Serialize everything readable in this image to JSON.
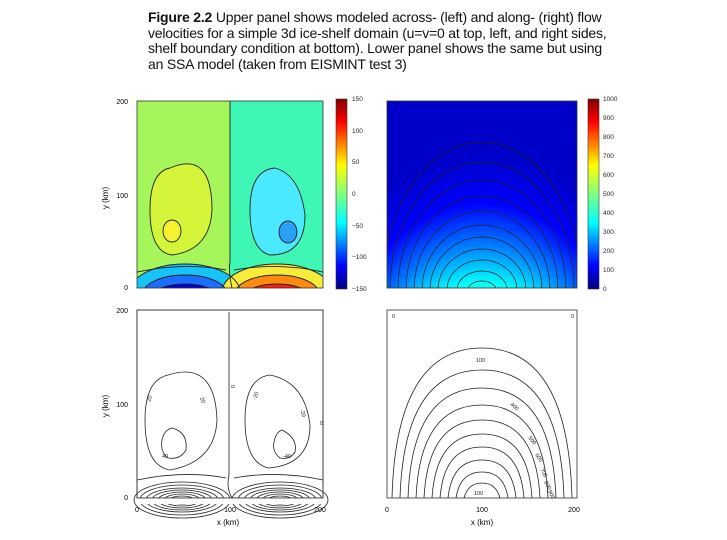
{
  "caption": {
    "label": "Figure 2.2",
    "text": "Upper panel shows modeled across- (left) and along- (right) flow velocities for a simple 3d ice-shelf domain (u=v=0 at top, left, and right sides, shelf boundary condition at bottom). Lower panel shows the same but using an SSA model (taken from EISMINT test 3)"
  },
  "panels": {
    "upper_left": {
      "ylabel": "y (km)",
      "yticks": [
        "200",
        "100",
        "0"
      ],
      "colorbar_ticks": [
        "150",
        "100",
        "50",
        "0",
        "−50",
        "−100",
        "−150"
      ]
    },
    "upper_right": {
      "colorbar_ticks": [
        "1000",
        "900",
        "800",
        "700",
        "600",
        "500",
        "400",
        "300",
        "200",
        "100",
        "0"
      ]
    },
    "lower_left": {
      "ylabel": "y (km)",
      "xlabel": "x (km)",
      "yticks": [
        "200",
        "100",
        "0"
      ],
      "xticks": [
        "0",
        "100",
        "200"
      ],
      "contour_labels": [
        "20",
        "20",
        "40",
        "-20",
        "-20",
        "-40",
        "0",
        "0"
      ]
    },
    "lower_right": {
      "xlabel": "x (km)",
      "xticks": [
        "0",
        "100",
        "200"
      ],
      "contour_labels": [
        "0",
        "0",
        "100",
        "400",
        "500",
        "600",
        "700",
        "800",
        "900",
        "100"
      ]
    }
  },
  "colors": {
    "colormap": [
      "#00007f",
      "#0000ff",
      "#007fff",
      "#00ffff",
      "#7fff7f",
      "#ffff00",
      "#ff7f00",
      "#ff0000",
      "#7f0000"
    ]
  }
}
